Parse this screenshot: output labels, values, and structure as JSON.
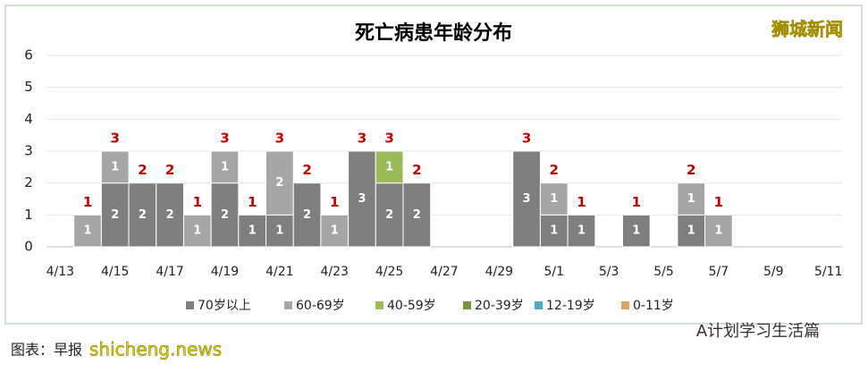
{
  "chart_data": {
    "type": "bar",
    "stacked": true,
    "title": "死亡病患年龄分布",
    "categories": [
      "4/13",
      null,
      "4/15",
      null,
      "4/17",
      null,
      "4/19",
      null,
      "4/21",
      null,
      "4/23",
      null,
      "4/25",
      null,
      "4/27",
      null,
      "4/29",
      null,
      "5/1",
      null,
      "5/3",
      null,
      "5/5",
      null,
      "5/7",
      null,
      "5/9",
      null,
      "5/11"
    ],
    "series": [
      {
        "name": "70岁以上",
        "color": "#7f7f7f",
        "values": [
          null,
          null,
          2,
          2,
          2,
          null,
          2,
          1,
          1,
          2,
          null,
          3,
          2,
          2,
          null,
          null,
          null,
          3,
          1,
          1,
          null,
          1,
          null,
          1,
          null,
          null,
          null,
          null,
          null
        ]
      },
      {
        "name": "60-69岁",
        "color": "#a6a6a6",
        "values": [
          null,
          1,
          1,
          null,
          null,
          1,
          1,
          null,
          2,
          null,
          1,
          null,
          null,
          null,
          null,
          null,
          null,
          null,
          1,
          null,
          null,
          null,
          null,
          1,
          1,
          null,
          null,
          null,
          null
        ]
      },
      {
        "name": "40-59岁",
        "color": "#9bbb59",
        "values": [
          null,
          null,
          null,
          null,
          null,
          null,
          null,
          null,
          null,
          null,
          null,
          null,
          1,
          null,
          null,
          null,
          null,
          null,
          null,
          null,
          null,
          null,
          null,
          null,
          null,
          null,
          null,
          null,
          null
        ]
      },
      {
        "name": "20-39岁",
        "color": "#77933c",
        "values": [
          null,
          null,
          null,
          null,
          null,
          null,
          null,
          null,
          null,
          null,
          null,
          null,
          null,
          null,
          null,
          null,
          null,
          null,
          null,
          null,
          null,
          null,
          null,
          null,
          null,
          null,
          null,
          null,
          null
        ]
      },
      {
        "name": "12-19岁",
        "color": "#4bacc6",
        "values": [
          null,
          null,
          null,
          null,
          null,
          null,
          null,
          null,
          null,
          null,
          null,
          null,
          null,
          null,
          null,
          null,
          null,
          null,
          null,
          null,
          null,
          null,
          null,
          null,
          null,
          null,
          null,
          null,
          null
        ]
      },
      {
        "name": "0-11岁",
        "color": "#e0a06a",
        "values": [
          null,
          null,
          null,
          null,
          null,
          null,
          null,
          null,
          null,
          null,
          null,
          null,
          null,
          null,
          null,
          null,
          null,
          null,
          null,
          null,
          null,
          null,
          null,
          null,
          null,
          null,
          null,
          null,
          null
        ]
      }
    ],
    "totals": [
      null,
      1,
      3,
      2,
      2,
      1,
      3,
      1,
      3,
      2,
      1,
      3,
      3,
      2,
      null,
      null,
      null,
      3,
      2,
      1,
      null,
      1,
      null,
      2,
      1,
      null,
      null,
      null,
      null
    ],
    "ylim": [
      0,
      6
    ],
    "yticks": [
      0,
      1,
      2,
      3,
      4,
      5,
      6
    ],
    "grid": true,
    "legend": "bottom",
    "watermark": "狮城新闻",
    "account": "A计划学习生活篇",
    "source": "图表：早报",
    "site": "shicheng.news"
  }
}
